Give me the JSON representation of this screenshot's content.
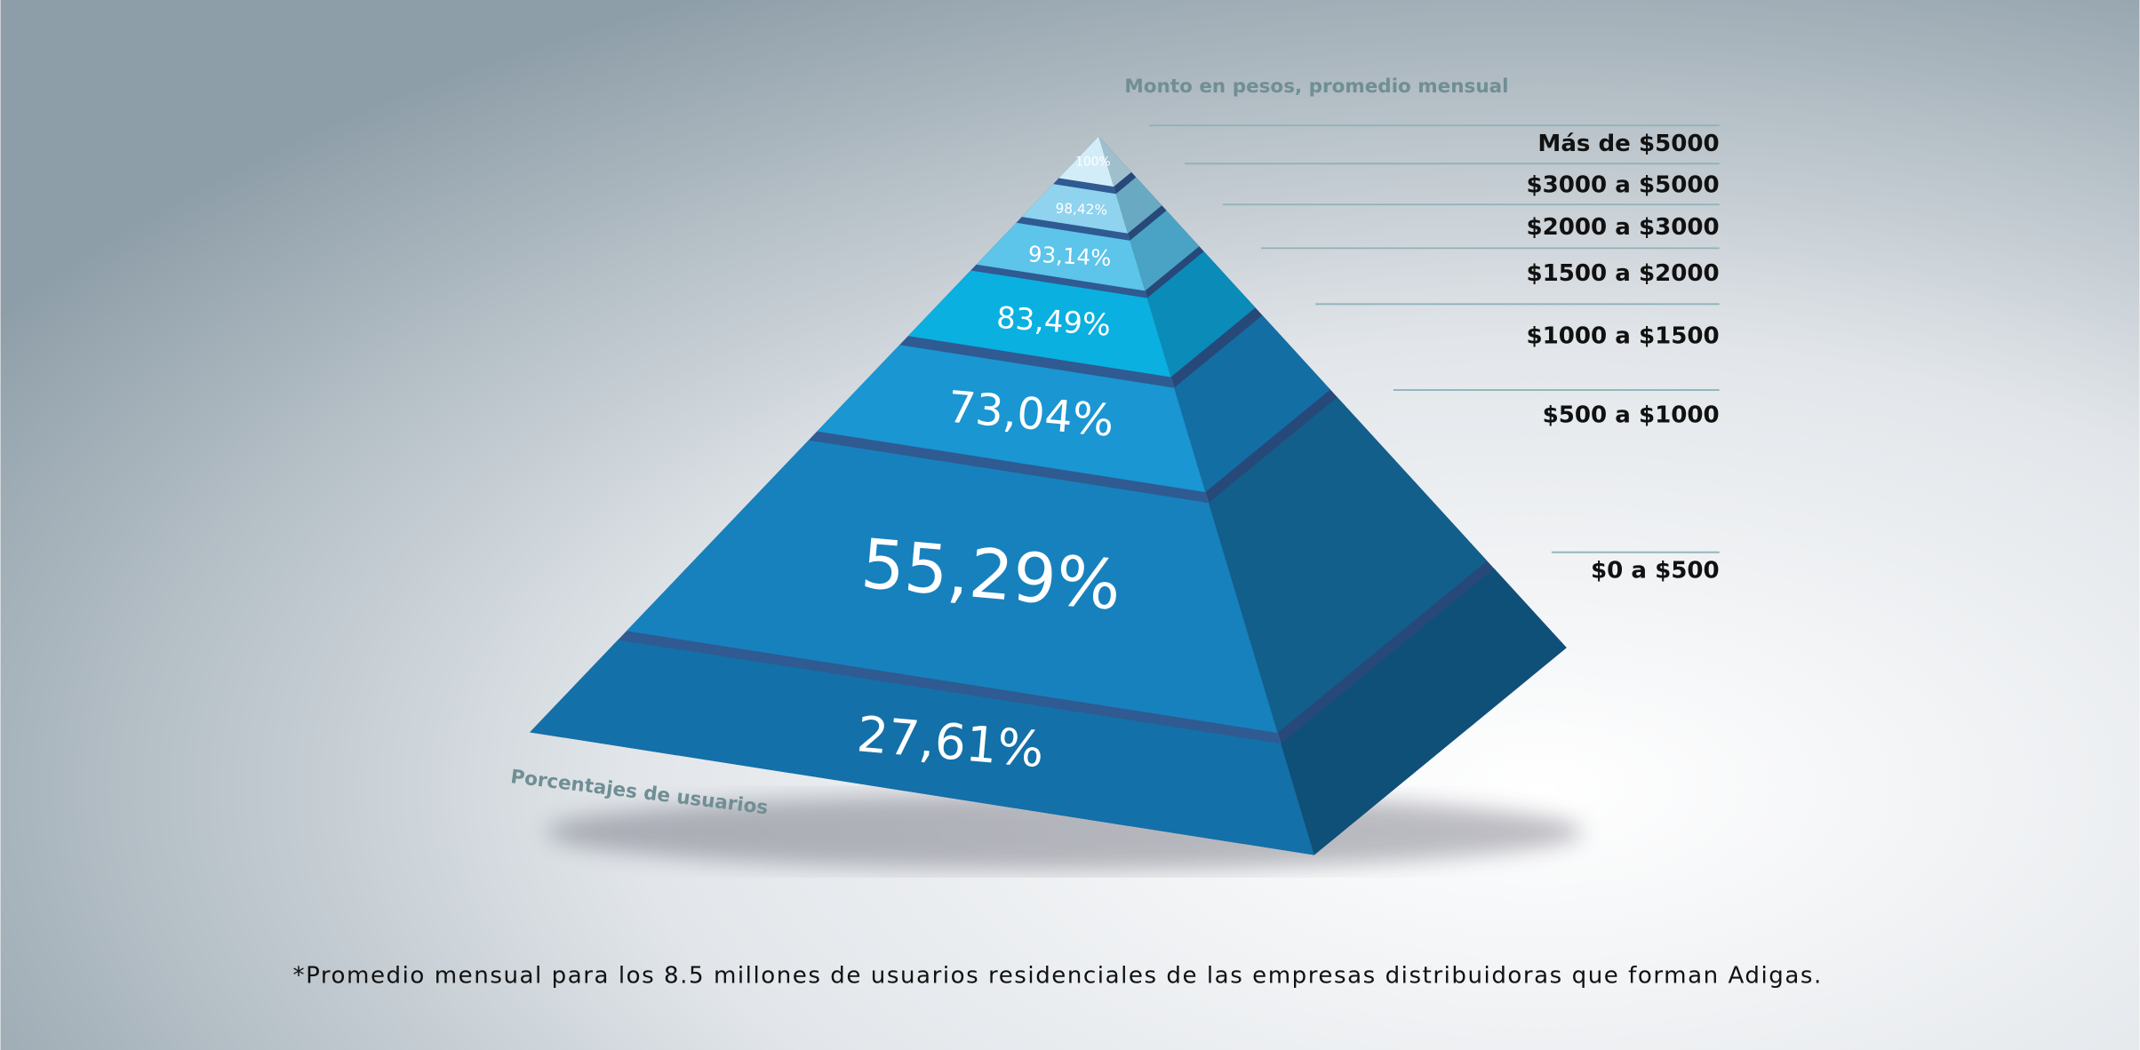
{
  "header": {
    "axis_title": "Monto en pesos, promedio mensual",
    "base_title": "Porcentajes de usuarios"
  },
  "levels": [
    {
      "percent": "100%",
      "range": "Más de $5000"
    },
    {
      "percent": "98,42%",
      "range": "$3000 a $5000"
    },
    {
      "percent": "93,14%",
      "range": "$2000 a $3000"
    },
    {
      "percent": "83,49%",
      "range": "$1500 a $2000"
    },
    {
      "percent": "73,04%",
      "range": "$1000 a $1500"
    },
    {
      "percent": "55,29%",
      "range": "$500 a $1000"
    },
    {
      "percent": "27,61%",
      "range": "$0 a $500"
    }
  ],
  "footnote": "*Promedio mensual para los 8.5 millones de usuarios residenciales de las empresas distribuidoras que forman Adigas."
}
